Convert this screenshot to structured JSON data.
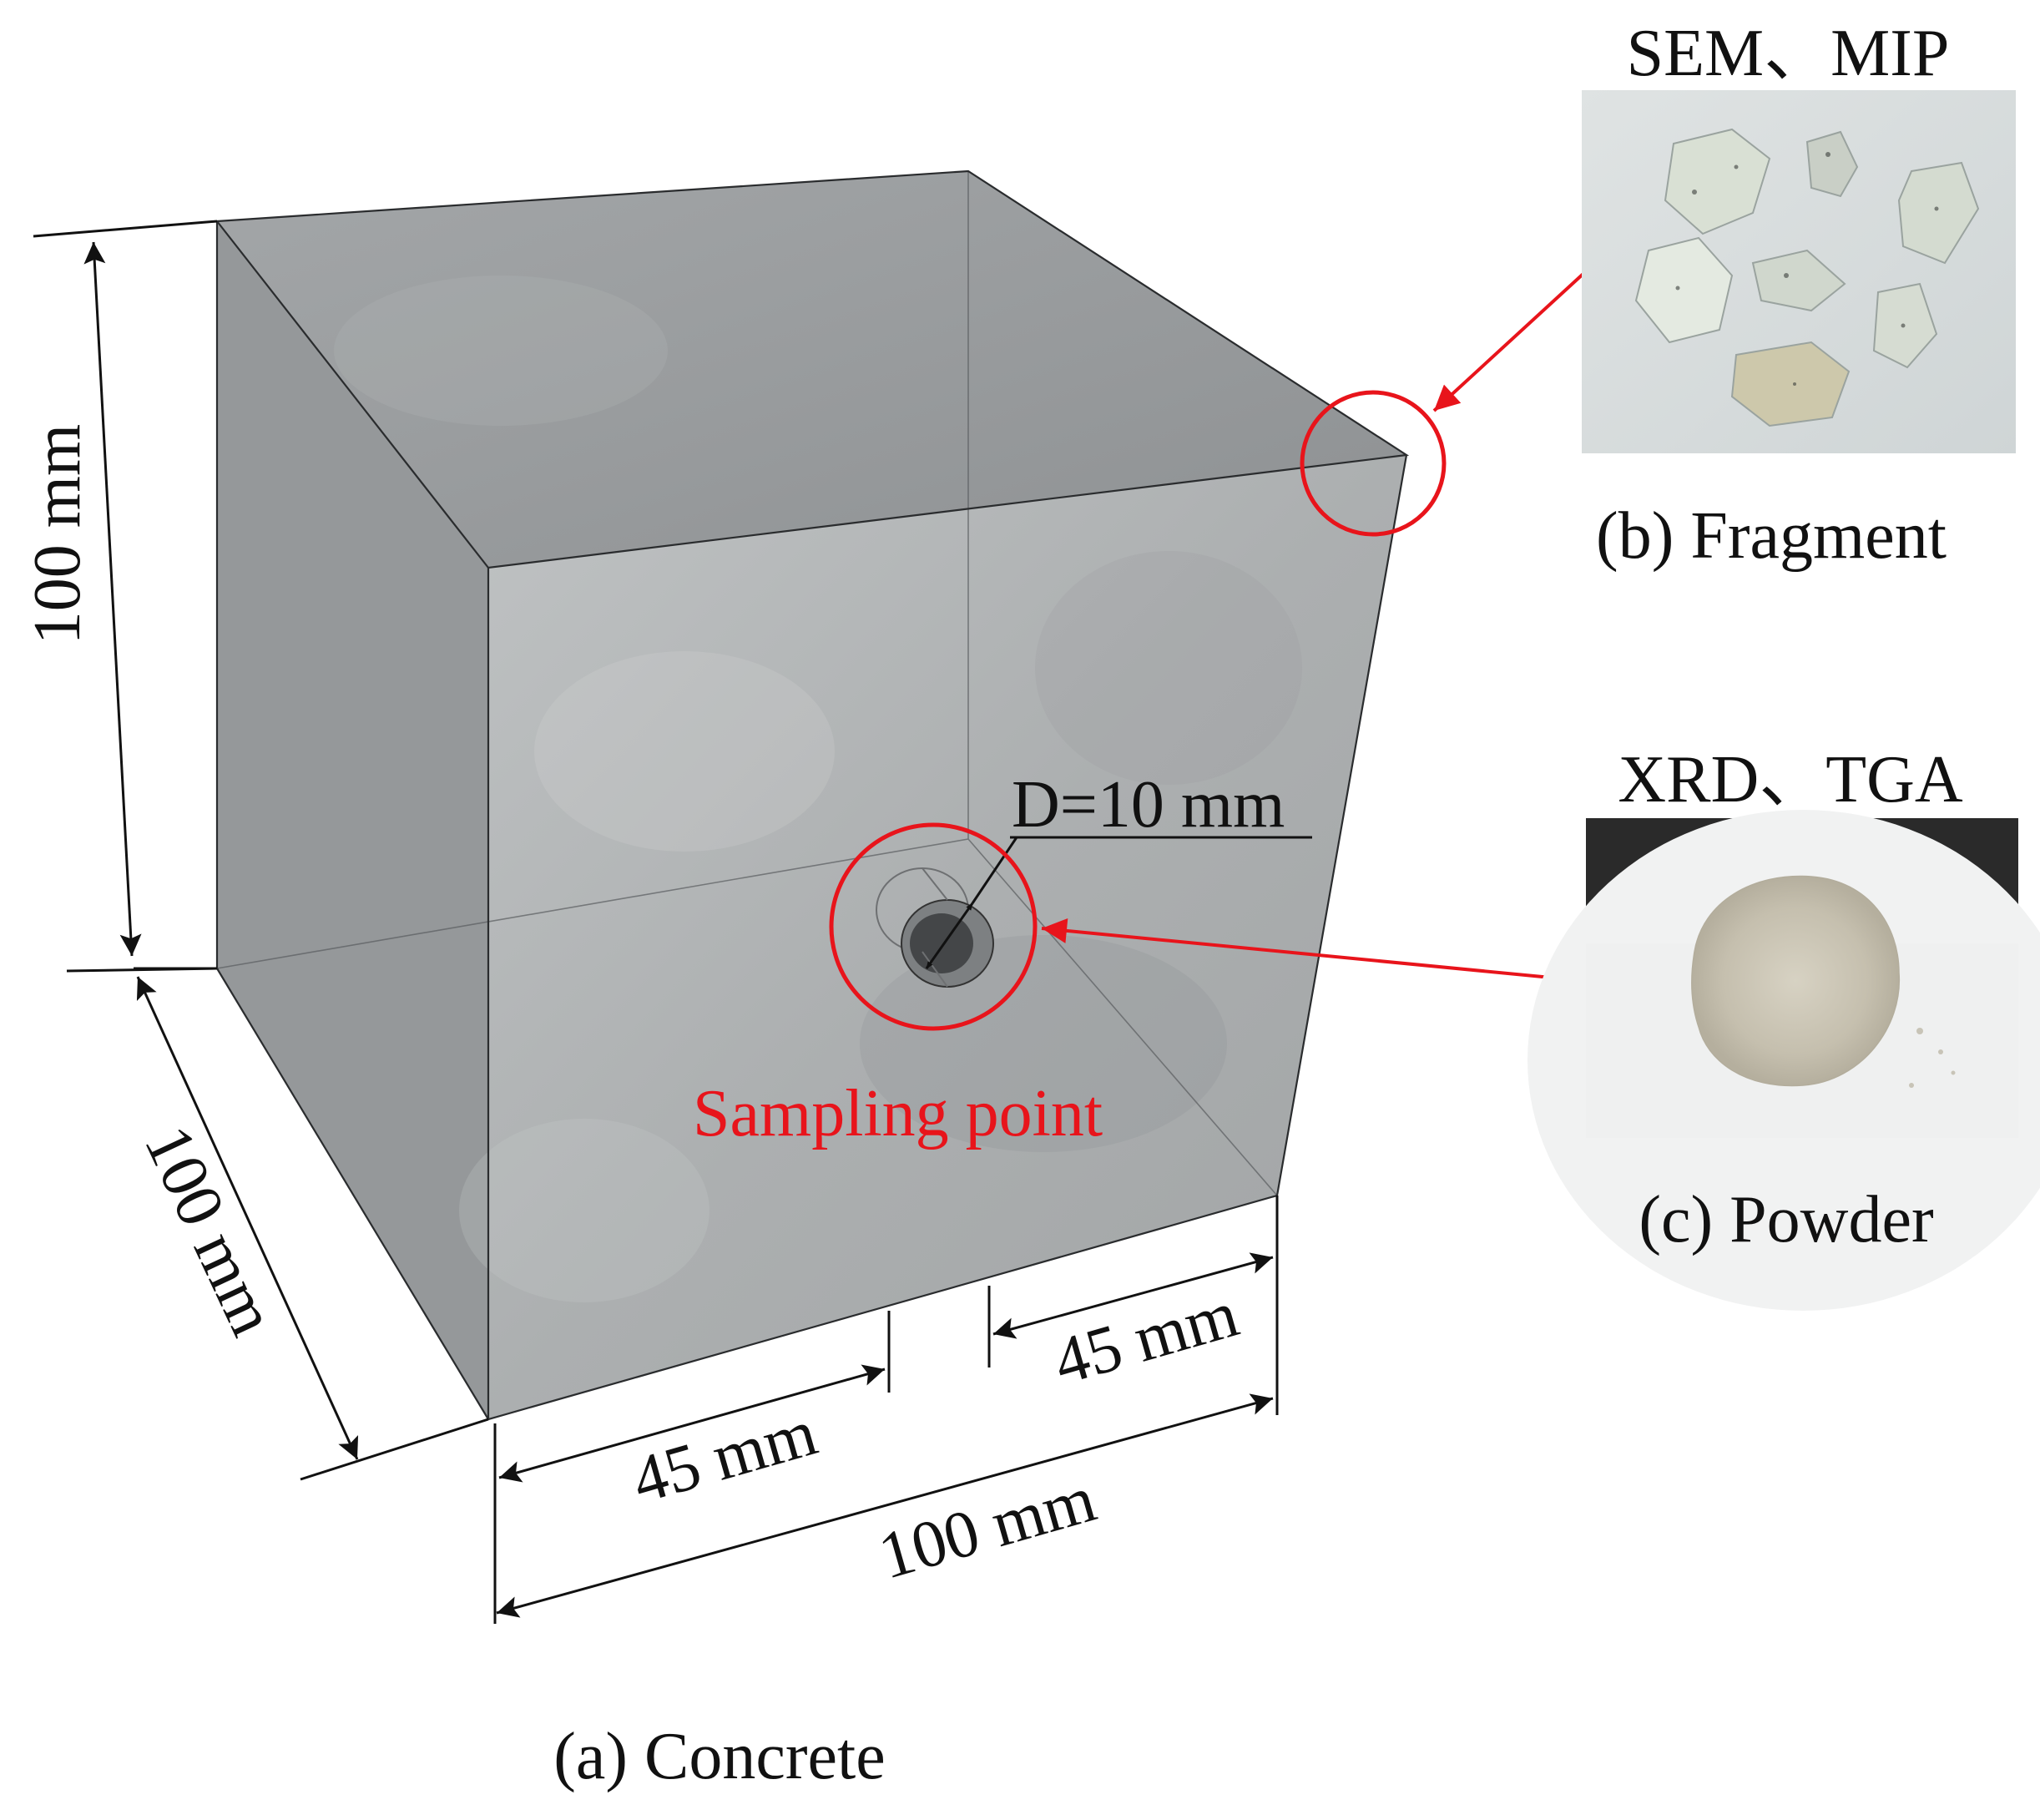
{
  "panels": {
    "concrete": {
      "caption": "(a) Concrete",
      "dim_height": "100 mm",
      "dim_depth": "100 mm",
      "dim_width": "100 mm",
      "dim_left_offset": "45 mm",
      "dim_right_offset": "45 mm",
      "hole_diameter": "D=10 mm",
      "sampling_label": "Sampling point"
    },
    "fragment": {
      "tests": "SEM、MIP",
      "caption": "(b) Fragment"
    },
    "powder": {
      "tests": "XRD、TGA",
      "caption": "(c) Powder"
    }
  },
  "colors": {
    "annotation_red": "#e8141b",
    "concrete_gray": "#a6a9ab",
    "line_black": "#111111"
  }
}
